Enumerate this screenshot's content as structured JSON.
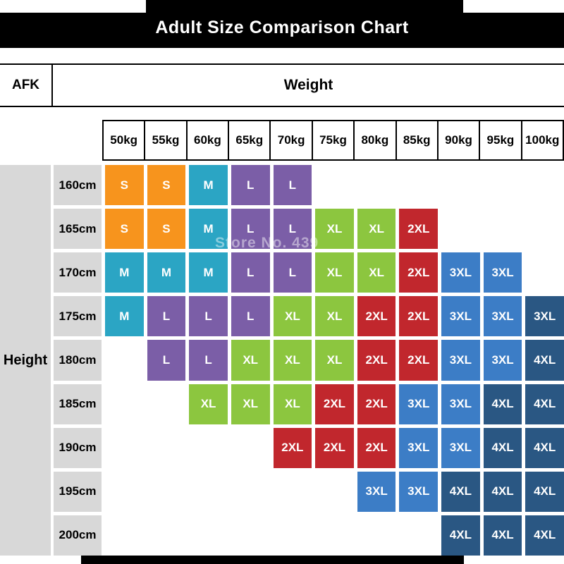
{
  "title": "Adult Size Comparison Chart",
  "corner_label": "AFK",
  "weight_header": "Weight",
  "height_header": "Height",
  "watermark": "Store No. 439",
  "weights": [
    "50kg",
    "55kg",
    "60kg",
    "65kg",
    "70kg",
    "75kg",
    "80kg",
    "85kg",
    "90kg",
    "95kg",
    "100kg"
  ],
  "heights": [
    "160cm",
    "165cm",
    "170cm",
    "175cm",
    "180cm",
    "185cm",
    "190cm",
    "195cm",
    "200cm"
  ],
  "size_colors": {
    "orange": "#f7941d",
    "teal": "#2ba5c4",
    "purple": "#7b5ea7",
    "green": "#8cc63f",
    "red": "#c1272d",
    "blue": "#3c7dc6",
    "navy": "#2a5783"
  },
  "grid": [
    [
      "S|orange",
      "S|orange",
      "M|teal",
      "L|purple",
      "L|purple",
      "",
      "",
      "",
      "",
      "",
      ""
    ],
    [
      "S|orange",
      "S|orange",
      "M|teal",
      "L|purple",
      "L|purple",
      "XL|green",
      "XL|green",
      "2XL|red",
      "",
      "",
      ""
    ],
    [
      "M|teal",
      "M|teal",
      "M|teal",
      "L|purple",
      "L|purple",
      "XL|green",
      "XL|green",
      "2XL|red",
      "3XL|blue",
      "3XL|blue",
      ""
    ],
    [
      "M|teal",
      "L|purple",
      "L|purple",
      "L|purple",
      "XL|green",
      "XL|green",
      "2XL|red",
      "2XL|red",
      "3XL|blue",
      "3XL|blue",
      "3XL|navy"
    ],
    [
      "",
      "L|purple",
      "L|purple",
      "XL|green",
      "XL|green",
      "XL|green",
      "2XL|red",
      "2XL|red",
      "3XL|blue",
      "3XL|blue",
      "4XL|navy"
    ],
    [
      "",
      "",
      "XL|green",
      "XL|green",
      "XL|green",
      "2XL|red",
      "2XL|red",
      "3XL|blue",
      "3XL|blue",
      "4XL|navy",
      "4XL|navy"
    ],
    [
      "",
      "",
      "",
      "",
      "2XL|red",
      "2XL|red",
      "2XL|red",
      "3XL|blue",
      "3XL|blue",
      "4XL|navy",
      "4XL|navy"
    ],
    [
      "",
      "",
      "",
      "",
      "",
      "",
      "3XL|blue",
      "3XL|blue",
      "4XL|navy",
      "4XL|navy",
      "4XL|navy"
    ],
    [
      "",
      "",
      "",
      "",
      "",
      "",
      "",
      "",
      "4XL|navy",
      "4XL|navy",
      "4XL|navy"
    ]
  ],
  "chart_data": {
    "type": "heatmap",
    "title": "Adult Size Comparison Chart",
    "xlabel": "Weight",
    "ylabel": "Height",
    "columns": [
      "50kg",
      "55kg",
      "60kg",
      "65kg",
      "70kg",
      "75kg",
      "80kg",
      "85kg",
      "90kg",
      "95kg",
      "100kg"
    ],
    "rows": [
      "160cm",
      "165cm",
      "170cm",
      "175cm",
      "180cm",
      "185cm",
      "190cm",
      "195cm",
      "200cm"
    ],
    "values": [
      [
        "S",
        "S",
        "M",
        "L",
        "L",
        "",
        "",
        "",
        "",
        "",
        ""
      ],
      [
        "S",
        "S",
        "M",
        "L",
        "L",
        "XL",
        "XL",
        "2XL",
        "",
        "",
        ""
      ],
      [
        "M",
        "M",
        "M",
        "L",
        "L",
        "XL",
        "XL",
        "2XL",
        "3XL",
        "3XL",
        ""
      ],
      [
        "M",
        "L",
        "L",
        "L",
        "XL",
        "XL",
        "2XL",
        "2XL",
        "3XL",
        "3XL",
        "3XL"
      ],
      [
        "",
        "L",
        "L",
        "XL",
        "XL",
        "XL",
        "2XL",
        "2XL",
        "3XL",
        "3XL",
        "4XL"
      ],
      [
        "",
        "",
        "XL",
        "XL",
        "XL",
        "2XL",
        "2XL",
        "3XL",
        "3XL",
        "4XL",
        "4XL"
      ],
      [
        "",
        "",
        "",
        "",
        "2XL",
        "2XL",
        "2XL",
        "3XL",
        "3XL",
        "4XL",
        "4XL"
      ],
      [
        "",
        "",
        "",
        "",
        "",
        "",
        "3XL",
        "3XL",
        "4XL",
        "4XL",
        "4XL"
      ],
      [
        "",
        "",
        "",
        "",
        "",
        "",
        "",
        "",
        "4XL",
        "4XL",
        "4XL"
      ]
    ],
    "legend_sizes": [
      "S",
      "M",
      "L",
      "XL",
      "2XL",
      "3XL",
      "4XL"
    ]
  }
}
